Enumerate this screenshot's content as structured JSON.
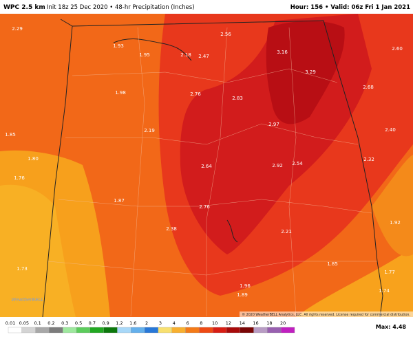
{
  "header": {
    "model": "WPC 2.5 km",
    "description": "Init 18z 25 Dec 2020 • 48-hr Precipitation (Inches)",
    "valid": "Hour: 156 • Valid: 06z Fri 1 Jan 2021"
  },
  "point_labels": [
    "2.29",
    "1.93",
    "1.95",
    "2.18",
    "2.47",
    "2.56",
    "3.16",
    "2.60",
    "3.29",
    "2.68",
    "1.98",
    "2.76",
    "2.83",
    "2.97",
    "2.40",
    "1.85",
    "2.19",
    "1.80",
    "1.76",
    "2.64",
    "2.92",
    "2.54",
    "2.32",
    "1.87",
    "2.76",
    "1.92",
    "2.38",
    "2.21",
    "1.85",
    "1.73",
    "1.77",
    "1.96",
    "1.89",
    "1.74"
  ],
  "watermark": "WeatherBELL",
  "copyright": "© 2020 WeatherBELL Analytics, LLC. All rights reserved. License required for commercial distribution.",
  "colorbar": {
    "labels": [
      "0.01",
      "0.05",
      "0.1",
      "0.2",
      "0.3",
      "0.5",
      "0.7",
      "0.9",
      "1.2",
      "1.6",
      "2",
      "3",
      "4",
      "6",
      "8",
      "10",
      "12",
      "14",
      "16",
      "18",
      "20"
    ],
    "colors": [
      "#ffffff",
      "#d4d4d4",
      "#a8a8a8",
      "#7c7c7c",
      "#9ee89e",
      "#5ccc5c",
      "#22a822",
      "#0c780c",
      "#a8d8f8",
      "#64b0ec",
      "#2878d8",
      "#f8e070",
      "#f8b030",
      "#f47a18",
      "#ee4a14",
      "#d81e14",
      "#a80a0a",
      "#7a0606",
      "#b89cc4",
      "#9860b0",
      "#c020c0"
    ]
  },
  "max": "Max: 4.48"
}
